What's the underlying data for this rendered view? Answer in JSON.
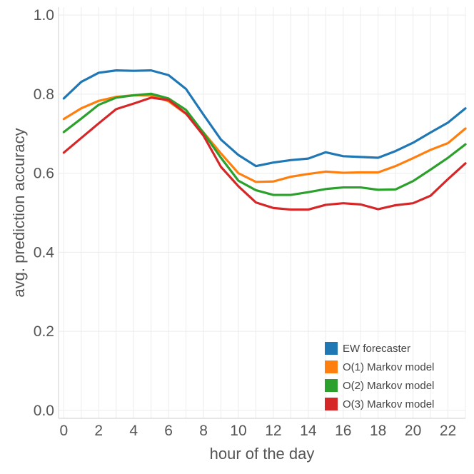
{
  "chart_data": {
    "type": "line",
    "title": "",
    "xlabel": "hour of the day",
    "ylabel": "avg. prediction accuracy",
    "xlim": [
      -0.3,
      23
    ],
    "ylim": [
      -0.02,
      1.02
    ],
    "x": [
      0,
      1,
      2,
      3,
      4,
      5,
      6,
      7,
      8,
      9,
      10,
      11,
      12,
      13,
      14,
      15,
      16,
      17,
      18,
      19,
      20,
      21,
      22,
      23
    ],
    "x_ticks": [
      0,
      2,
      4,
      6,
      8,
      10,
      12,
      14,
      16,
      18,
      20,
      22
    ],
    "x_tick_labels": [
      "0",
      "2",
      "4",
      "6",
      "8",
      "10",
      "12",
      "14",
      "16",
      "18",
      "20",
      "22"
    ],
    "y_ticks": [
      0.0,
      0.2,
      0.4,
      0.6,
      0.8,
      1.0
    ],
    "y_tick_labels": [
      "0.0",
      "0.2",
      "0.4",
      "0.6",
      "0.8",
      "1.0"
    ],
    "grid": true,
    "legend_position": "bottom-right",
    "series": [
      {
        "name": "EW forecaster",
        "color": "#1f77b4",
        "values": [
          0.789,
          0.831,
          0.854,
          0.86,
          0.859,
          0.86,
          0.848,
          0.813,
          0.748,
          0.685,
          0.646,
          0.618,
          0.627,
          0.633,
          0.637,
          0.653,
          0.643,
          0.641,
          0.639,
          0.656,
          0.677,
          0.703,
          0.728,
          0.764
        ]
      },
      {
        "name": "O(1) Markov model",
        "color": "#ff7f0e",
        "values": [
          0.737,
          0.764,
          0.783,
          0.793,
          0.797,
          0.797,
          0.782,
          0.75,
          0.703,
          0.65,
          0.6,
          0.578,
          0.579,
          0.591,
          0.598,
          0.604,
          0.601,
          0.602,
          0.602,
          0.618,
          0.638,
          0.659,
          0.676,
          0.713
        ]
      },
      {
        "name": "O(2) Markov model",
        "color": "#2ca02c",
        "values": [
          0.704,
          0.738,
          0.773,
          0.791,
          0.797,
          0.801,
          0.789,
          0.76,
          0.702,
          0.639,
          0.581,
          0.557,
          0.545,
          0.545,
          0.552,
          0.56,
          0.564,
          0.564,
          0.558,
          0.559,
          0.58,
          0.609,
          0.639,
          0.673
        ]
      },
      {
        "name": "O(3) Markov model",
        "color": "#d62728",
        "values": [
          0.652,
          0.689,
          0.726,
          0.762,
          0.776,
          0.791,
          0.785,
          0.751,
          0.695,
          0.616,
          0.567,
          0.526,
          0.512,
          0.508,
          0.508,
          0.52,
          0.524,
          0.521,
          0.509,
          0.519,
          0.524,
          0.543,
          0.585,
          0.625
        ]
      }
    ]
  }
}
